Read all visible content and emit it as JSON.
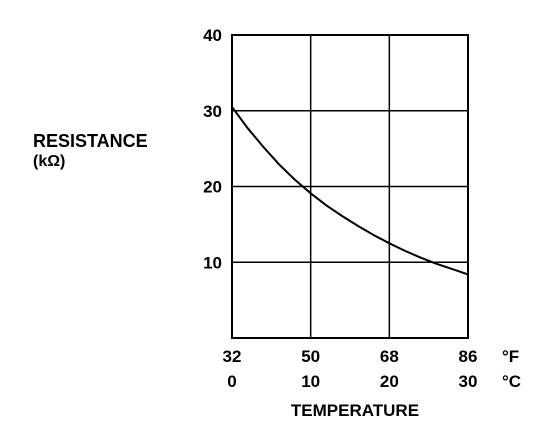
{
  "chart_data": {
    "type": "line",
    "title": "",
    "xlabel": "TEMPERATURE",
    "ylabel": "RESISTANCE",
    "ylabel_unit": "(kΩ)",
    "xlim": [
      0,
      30
    ],
    "ylim": [
      0,
      40
    ],
    "grid": true,
    "x_ticks_fahrenheit": [
      "32",
      "50",
      "68",
      "86"
    ],
    "x_ticks_celsius": [
      "0",
      "10",
      "20",
      "30"
    ],
    "x_unit_fahrenheit": "°F",
    "x_unit_celsius": "°C",
    "y_ticks": [
      "40",
      "30",
      "20",
      "10"
    ],
    "series": [
      {
        "x": [
          0,
          2,
          4,
          6,
          8,
          10,
          12,
          14,
          16,
          18,
          20,
          22,
          24,
          26,
          28,
          30
        ],
        "y": [
          30.5,
          27.7,
          25.2,
          22.9,
          20.9,
          19.1,
          17.5,
          16.1,
          14.8,
          13.6,
          12.5,
          11.5,
          10.6,
          9.8,
          9.1,
          8.4
        ]
      }
    ]
  }
}
